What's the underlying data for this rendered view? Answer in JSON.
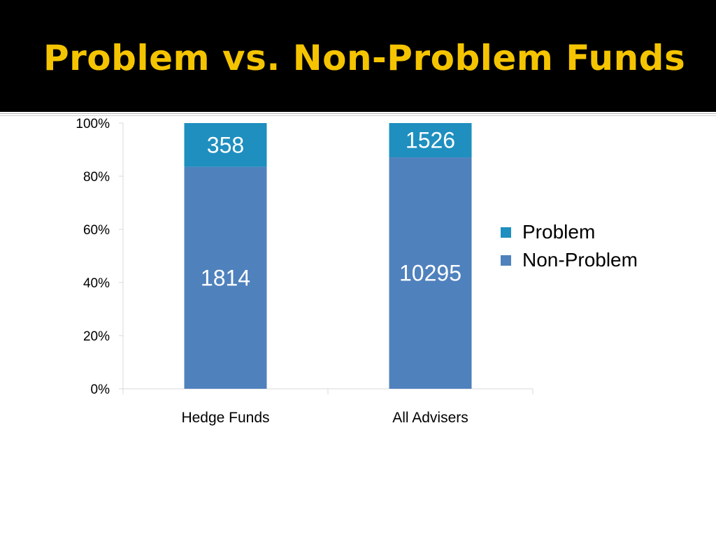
{
  "slide": {
    "title": "Problem vs. Non-Problem Funds"
  },
  "colors": {
    "title_bar": "#000000",
    "title_text": "#f5c400",
    "problem": "#1e8fbf",
    "non_problem": "#4f81bd",
    "bar_label": "#ffffff",
    "axis": "#d9d9d9"
  },
  "chart_data": {
    "type": "bar",
    "stacked": "100%",
    "title": "",
    "xlabel": "",
    "ylabel": "",
    "categories": [
      "Hedge Funds",
      "All Advisers"
    ],
    "series": [
      {
        "name": "Non-Problem",
        "values": [
          1814,
          10295
        ],
        "color": "#4f81bd"
      },
      {
        "name": "Problem",
        "values": [
          358,
          1526
        ],
        "color": "#1e8fbf"
      }
    ],
    "data_labels": [
      {
        "series": "Non-Problem",
        "labels": [
          "1814",
          "10295"
        ]
      },
      {
        "series": "Problem",
        "labels": [
          "358",
          "1526"
        ]
      }
    ],
    "yticks": [
      "0%",
      "20%",
      "40%",
      "60%",
      "80%",
      "100%"
    ],
    "ylim": [
      0,
      100
    ],
    "grid": false,
    "legend_position": "right"
  },
  "legend": {
    "items": [
      {
        "label": "Problem",
        "color": "#1e8fbf"
      },
      {
        "label": "Non-Problem",
        "color": "#4f81bd"
      }
    ]
  }
}
